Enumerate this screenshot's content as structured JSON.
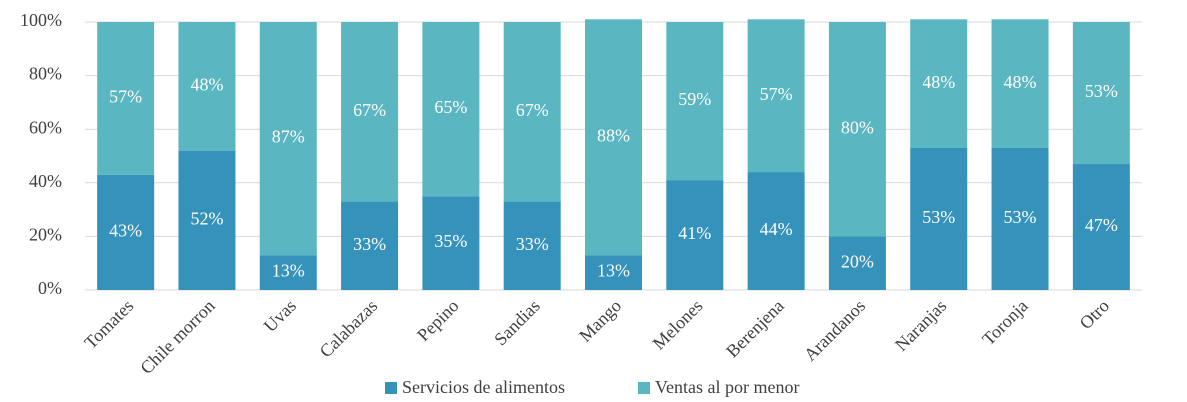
{
  "chart_data": {
    "type": "stacked_bar",
    "categories": [
      "Tomates",
      "Chile morron",
      "Uvas",
      "Calabazas",
      "Pepino",
      "Sandias",
      "Mango",
      "Melones",
      "Berenjena",
      "Arandanos",
      "Naranjas",
      "Toronja",
      "Otro"
    ],
    "series": [
      {
        "name": "Servicios de alimentos",
        "color": "#3592bb",
        "values": [
          43,
          52,
          13,
          33,
          35,
          33,
          13,
          41,
          44,
          20,
          53,
          53,
          47
        ],
        "value_labels": [
          "43%",
          "52%",
          "13%",
          "33%",
          "35%",
          "33%",
          "13%",
          "41%",
          "44%",
          "20%",
          "53%",
          "53%",
          "47%"
        ]
      },
      {
        "name": "Ventas al por menor",
        "color": "#5ab6c1",
        "values": [
          57,
          48,
          87,
          67,
          65,
          67,
          88,
          59,
          57,
          80,
          48,
          48,
          53
        ],
        "value_labels": [
          "57%",
          "48%",
          "87%",
          "67%",
          "65%",
          "67%",
          "88%",
          "59%",
          "57%",
          "80%",
          "48%",
          "48%",
          "53%"
        ]
      }
    ],
    "ylim": [
      0,
      100
    ],
    "yticks": [
      {
        "value": 0,
        "label": "0%"
      },
      {
        "value": 20,
        "label": "20%"
      },
      {
        "value": 40,
        "label": "40%"
      },
      {
        "value": 60,
        "label": "60%"
      },
      {
        "value": 80,
        "label": "80%"
      },
      {
        "value": 100,
        "label": "100%"
      }
    ],
    "grid": true,
    "legend": "bottom"
  }
}
